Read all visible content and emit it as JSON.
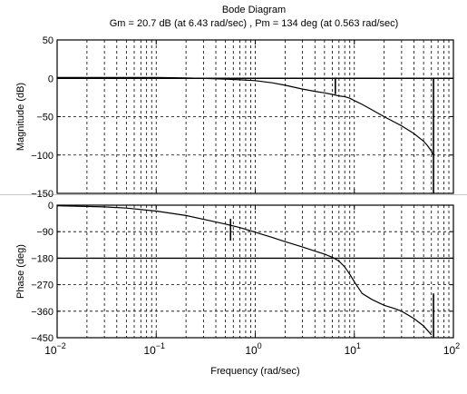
{
  "chart_data": [
    {
      "type": "line",
      "title": "Bode Diagram",
      "subtitle": "Gm = 20.7 dB (at 6.43 rad/sec) ,  Pm = 134 deg (at 0.563 rad/sec)",
      "ylabel": "Magnitude (dB)",
      "xlabel": "",
      "x_scale": "log",
      "xlim": [
        0.01,
        100
      ],
      "ylim": [
        -150,
        50
      ],
      "y_ticks": [
        50,
        0,
        -50,
        -100,
        -150
      ],
      "y_tick_labels": [
        "50",
        "0",
        "−50",
        "−100",
        "−150"
      ],
      "grid": true,
      "series": [
        {
          "x": [
            0.01,
            0.05,
            0.1,
            0.2,
            0.3,
            0.5,
            0.7,
            1.0,
            1.5,
            2.0,
            3.0,
            4.0,
            5.0,
            6.0,
            7.0,
            8.0,
            9.0,
            10.0,
            12.0,
            15.0,
            20.0,
            30.0,
            40.0,
            50.0,
            55.0,
            60.0,
            62.0
          ],
          "y": [
            1,
            1,
            1,
            0.5,
            0,
            -1,
            -2,
            -3,
            -6,
            -9,
            -14,
            -17,
            -19,
            -21,
            -23,
            -24,
            -26,
            -29,
            -34,
            -41,
            -50,
            -62,
            -72,
            -82,
            -88,
            -95,
            -100
          ]
        }
      ],
      "markers": [
        {
          "x": 6.43,
          "y1": -20.7,
          "y2": 0
        },
        {
          "x": 63,
          "y1": -150,
          "y2": 0
        }
      ]
    },
    {
      "type": "line",
      "ylabel": "Phase (deg)",
      "xlabel": "Frequency  (rad/sec)",
      "x_scale": "log",
      "xlim": [
        0.01,
        100
      ],
      "ylim": [
        -450,
        0
      ],
      "y_ticks": [
        0,
        -90,
        -180,
        -270,
        -360,
        -450
      ],
      "y_tick_labels": [
        "0",
        "−90",
        "−180",
        "−270",
        "−360",
        "−450"
      ],
      "x_ticks": [
        0.01,
        0.1,
        1,
        10,
        100
      ],
      "x_tick_base": "10",
      "x_tick_exponents": [
        "−2",
        "−1",
        "0",
        "1",
        "2"
      ],
      "grid": true,
      "series": [
        {
          "x": [
            0.01,
            0.03,
            0.05,
            0.1,
            0.2,
            0.3,
            0.5,
            0.7,
            1.0,
            1.5,
            2.0,
            3.0,
            4.0,
            5.0,
            6.0,
            7.0,
            8.0,
            9.0,
            10.0,
            12.0,
            15.0,
            20.0,
            25.0,
            30.0,
            40.0,
            50.0,
            60.0
          ],
          "y": [
            -2,
            -6,
            -10,
            -20,
            -35,
            -48,
            -64,
            -76,
            -92,
            -110,
            -124,
            -142,
            -156,
            -166,
            -177,
            -190,
            -210,
            -235,
            -260,
            -300,
            -320,
            -340,
            -350,
            -360,
            -385,
            -410,
            -440
          ]
        }
      ],
      "markers": [
        {
          "x": 0.563,
          "y1": -46,
          "y2": -120
        },
        {
          "x": 63,
          "y1": -450,
          "y2": -300
        }
      ]
    }
  ]
}
